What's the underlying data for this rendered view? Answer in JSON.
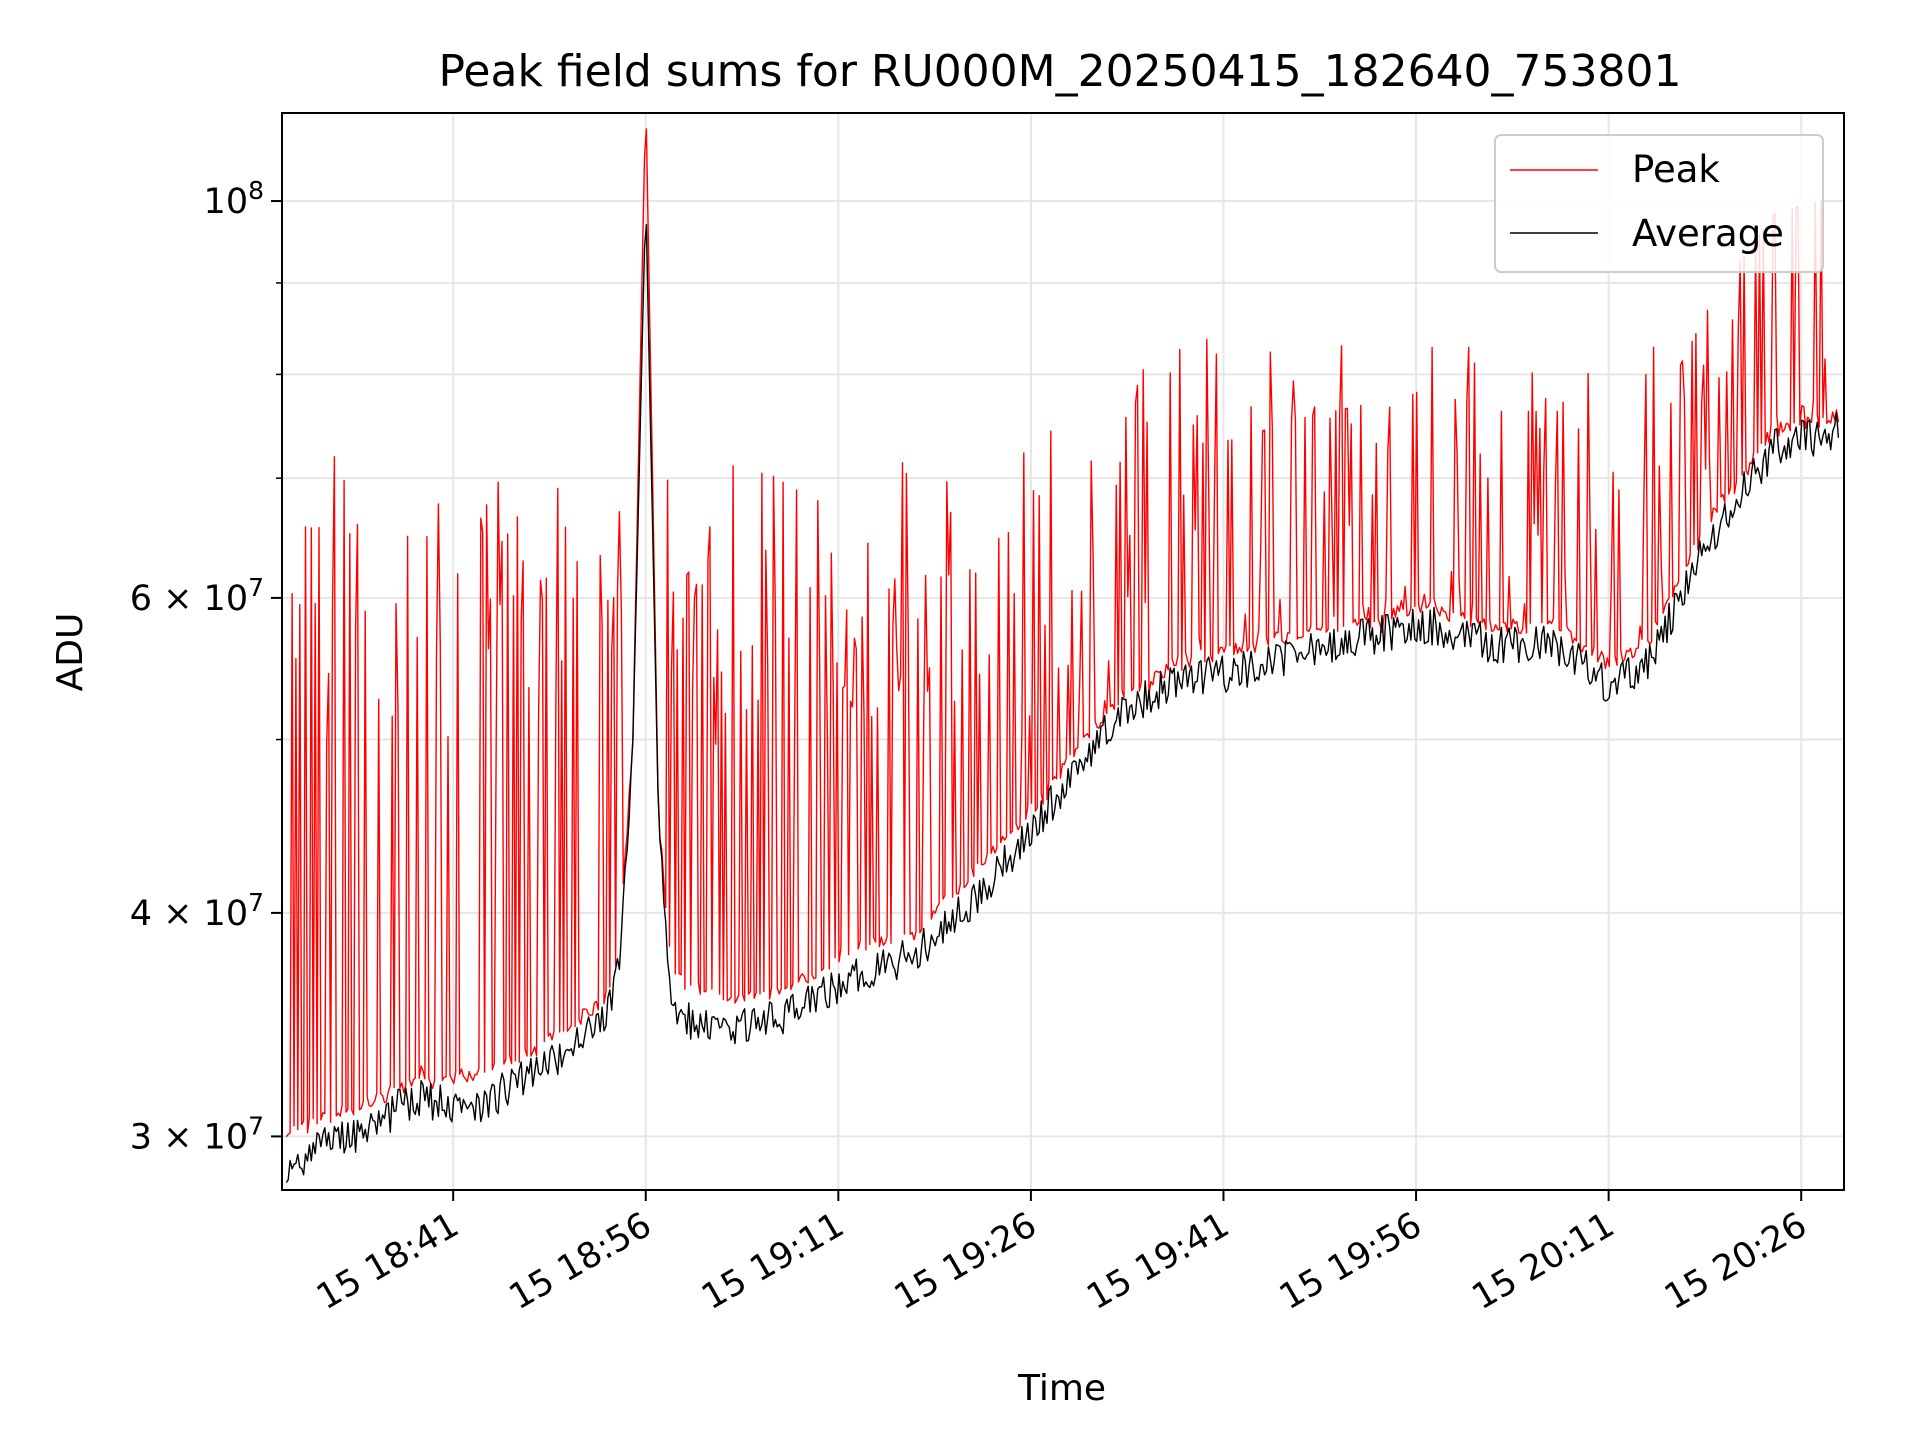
{
  "chart_data": {
    "type": "line",
    "title": "Peak field sums for RU000M_20250415_182640_753801",
    "xlabel": "Time",
    "ylabel": "ADU",
    "yscale": "log",
    "xlim": [
      "15 18:27:40",
      "15 20:29:20"
    ],
    "ylim": [
      28000000,
      112000000
    ],
    "x_ticks": [
      "15 18:41",
      "15 18:56",
      "15 19:11",
      "15 19:26",
      "15 19:41",
      "15 19:56",
      "15 20:11",
      "15 20:26"
    ],
    "y_ticks": [
      {
        "value": 100000000,
        "base": "10",
        "exp": "8"
      },
      {
        "value": 60000000,
        "base": "6 × 10",
        "exp": "7"
      },
      {
        "value": 40000000,
        "base": "4 × 10",
        "exp": "7"
      },
      {
        "value": 30000000,
        "base": "3 × 10",
        "exp": "7"
      }
    ],
    "grid": true,
    "legend_position": "top-right",
    "series": [
      {
        "name": "Peak",
        "color": "#ff0000",
        "points": [
          [
            "15 18:28",
            29800000
          ],
          [
            "15 18:33",
            30800000
          ],
          [
            "15 18:38",
            31800000
          ],
          [
            "15 18:43",
            32200000
          ],
          [
            "15 18:48",
            33400000
          ],
          [
            "15 18:53",
            35500000
          ],
          [
            "15 18:54",
            38000000
          ],
          [
            "15 18:55",
            50000000
          ],
          [
            "15 18:56",
            115000000
          ],
          [
            "15 18:57",
            45000000
          ],
          [
            "15 18:58",
            36500000
          ],
          [
            "15 19:02",
            35500000
          ],
          [
            "15 19:07",
            35800000
          ],
          [
            "15 19:12",
            37800000
          ],
          [
            "15 19:17",
            38600000
          ],
          [
            "15 19:22",
            42000000
          ],
          [
            "15 19:27",
            46000000
          ],
          [
            "15 19:32",
            51500000
          ],
          [
            "15 19:37",
            54500000
          ],
          [
            "15 19:42",
            55500000
          ],
          [
            "15 19:47",
            56500000
          ],
          [
            "15 19:52",
            57500000
          ],
          [
            "15 19:57",
            58500000
          ],
          [
            "15 20:02",
            57200000
          ],
          [
            "15 20:07",
            57400000
          ],
          [
            "15 20:11",
            54500000
          ],
          [
            "15 20:14",
            56000000
          ],
          [
            "15 20:19",
            66000000
          ],
          [
            "15 20:24",
            73500000
          ],
          [
            "15 20:29",
            75000000
          ]
        ],
        "spikes_to": [
          55000000,
          57000000,
          62000000,
          66000000,
          72000000,
          76000000,
          80000000,
          84000000,
          86000000
        ]
      },
      {
        "name": "Average",
        "color": "#000000",
        "points": [
          [
            "15 18:28",
            29000000
          ],
          [
            "15 18:33",
            30000000
          ],
          [
            "15 18:38",
            31500000
          ],
          [
            "15 18:43",
            31200000
          ],
          [
            "15 18:48",
            32800000
          ],
          [
            "15 18:53",
            35000000
          ],
          [
            "15 18:54",
            37500000
          ],
          [
            "15 18:55",
            50000000
          ],
          [
            "15 18:56",
            101000000
          ],
          [
            "15 18:57",
            45000000
          ],
          [
            "15 18:58",
            35000000
          ],
          [
            "15 19:02",
            34500000
          ],
          [
            "15 19:07",
            35000000
          ],
          [
            "15 19:12",
            36800000
          ],
          [
            "15 19:17",
            38000000
          ],
          [
            "15 19:22",
            41000000
          ],
          [
            "15 19:27",
            45500000
          ],
          [
            "15 19:32",
            51000000
          ],
          [
            "15 19:37",
            54000000
          ],
          [
            "15 19:42",
            54500000
          ],
          [
            "15 19:47",
            56000000
          ],
          [
            "15 19:52",
            57000000
          ],
          [
            "15 19:57",
            58000000
          ],
          [
            "15 20:02",
            56500000
          ],
          [
            "15 20:07",
            56500000
          ],
          [
            "15 20:11",
            53500000
          ],
          [
            "15 20:14",
            55000000
          ],
          [
            "15 20:19",
            65000000
          ],
          [
            "15 20:24",
            73000000
          ],
          [
            "15 20:29",
            74500000
          ]
        ]
      }
    ]
  }
}
